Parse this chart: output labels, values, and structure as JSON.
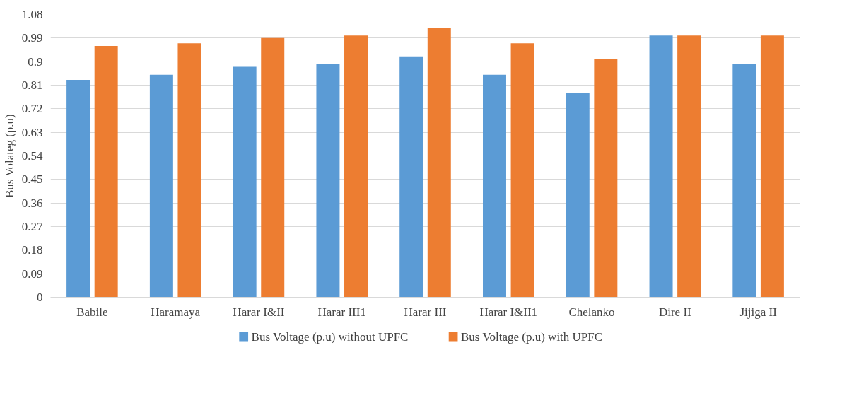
{
  "chart_data": {
    "type": "bar",
    "ylabel": "Bus Volateg (p.u)",
    "categories": [
      "Babile",
      "Haramaya",
      "Harar I&II",
      "Harar III1",
      "Harar III",
      "Harar I&II1",
      "Chelanko",
      "Dire II",
      "Jijiga II"
    ],
    "series": [
      {
        "name": "Bus Voltage  (p.u) without UPFC",
        "color": "#5b9bd5",
        "values": [
          0.83,
          0.85,
          0.88,
          0.89,
          0.92,
          0.85,
          0.78,
          1.0,
          0.89
        ]
      },
      {
        "name": "Bus Voltage  (p.u) with UPFC",
        "color": "#ed7d31",
        "values": [
          0.96,
          0.97,
          0.99,
          1.0,
          1.03,
          0.97,
          0.91,
          1.0,
          1.0
        ]
      }
    ],
    "ylim": [
      0,
      1.08
    ],
    "yticks": [
      0,
      0.09,
      0.18,
      0.27,
      0.36,
      0.45,
      0.54,
      0.63,
      0.72,
      0.81,
      0.9,
      0.99,
      1.08
    ],
    "grid": "y",
    "legend": "bottom"
  }
}
